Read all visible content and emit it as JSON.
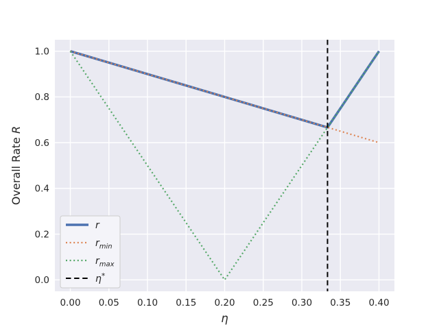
{
  "style": {
    "figure_background": "#ffffff",
    "axes_background": "#eaeaf2",
    "grid_color": "#ffffff",
    "text_color": "#262626",
    "legend_background": "#f4f4f9",
    "legend_border": "#cccccc"
  },
  "chart_data": {
    "type": "line",
    "title": "",
    "xlabel": "η",
    "ylabel_parts": [
      {
        "text": "Overall Rate ",
        "italic": false
      },
      {
        "text": "R",
        "italic": true
      }
    ],
    "xlim": [
      -0.02,
      0.42
    ],
    "ylim": [
      -0.05,
      1.05
    ],
    "grid": true,
    "legend_position": "lower left",
    "x_ticks": [
      {
        "value": 0.0,
        "label": "0.00"
      },
      {
        "value": 0.05,
        "label": "0.05"
      },
      {
        "value": 0.1,
        "label": "0.10"
      },
      {
        "value": 0.15,
        "label": "0.15"
      },
      {
        "value": 0.2,
        "label": "0.20"
      },
      {
        "value": 0.25,
        "label": "0.25"
      },
      {
        "value": 0.3,
        "label": "0.30"
      },
      {
        "value": 0.35,
        "label": "0.35"
      },
      {
        "value": 0.4,
        "label": "0.40"
      }
    ],
    "y_ticks": [
      {
        "value": 0.0,
        "label": "0.0"
      },
      {
        "value": 0.2,
        "label": "0.2"
      },
      {
        "value": 0.4,
        "label": "0.4"
      },
      {
        "value": 0.6,
        "label": "0.6"
      },
      {
        "value": 0.8,
        "label": "0.8"
      },
      {
        "value": 1.0,
        "label": "1.0"
      }
    ],
    "series": [
      {
        "name": "r",
        "legend": {
          "base": "r",
          "sub": "",
          "sup": ""
        },
        "color": "#4c72b0",
        "line_style": "solid",
        "line_width": 3.5,
        "points": [
          [
            0.0,
            1.0
          ],
          [
            0.3333,
            0.6667
          ],
          [
            0.4,
            1.0
          ]
        ]
      },
      {
        "name": "r_min",
        "legend": {
          "base": "r",
          "sub": "min",
          "sup": ""
        },
        "color": "#dd8452",
        "line_style": "dotted",
        "line_width": 2.2,
        "points": [
          [
            0.0,
            1.0
          ],
          [
            0.4,
            0.6
          ]
        ]
      },
      {
        "name": "r_max",
        "legend": {
          "base": "r",
          "sub": "max",
          "sup": ""
        },
        "color": "#55a868",
        "line_style": "dotted",
        "line_width": 2.2,
        "points": [
          [
            0.0,
            1.0
          ],
          [
            0.2,
            0.0
          ],
          [
            0.4,
            1.0
          ]
        ]
      }
    ],
    "vlines": [
      {
        "name": "eta_star",
        "legend": {
          "base": "η",
          "sub": "",
          "sup": "*"
        },
        "color": "#000000",
        "line_style": "dashed",
        "line_width": 2,
        "x": 0.3333
      }
    ]
  }
}
